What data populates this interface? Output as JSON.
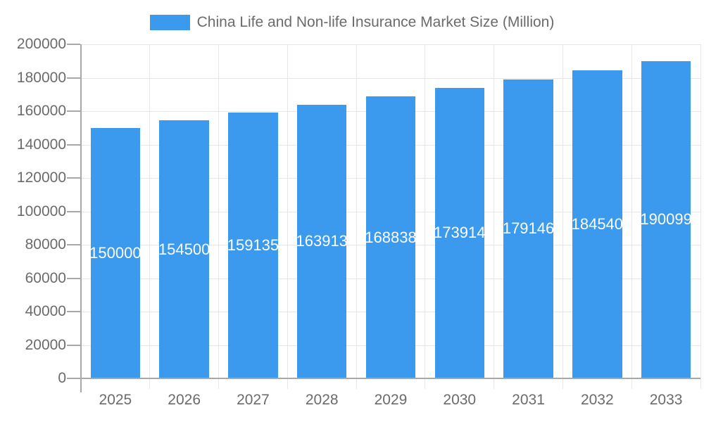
{
  "chart_data": {
    "type": "bar",
    "title": "China Life and Non-life Insurance Market Size (Million)",
    "legend": {
      "position": "top",
      "label": "China Life and Non-life Insurance Market Size (Million)"
    },
    "categories": [
      "2025",
      "2026",
      "2027",
      "2028",
      "2029",
      "2030",
      "2031",
      "2032",
      "2033"
    ],
    "series": [
      {
        "name": "China Life and Non-life Insurance Market Size (Million)",
        "values": [
          150000,
          154500,
          159135,
          163913,
          168838,
          173914,
          179146,
          184540,
          190099
        ]
      }
    ],
    "value_labels": [
      "150000",
      "154500",
      "159135",
      "163913",
      "168838",
      "173914",
      "179146",
      "184540",
      "190099"
    ],
    "value_labels_position": "inside-center",
    "xlabel": "",
    "ylabel": "",
    "ylim": [
      0,
      200000
    ],
    "ytick_step": 20000,
    "yticks": [
      "0",
      "20000",
      "40000",
      "60000",
      "80000",
      "100000",
      "120000",
      "140000",
      "160000",
      "180000",
      "200000"
    ],
    "grid": true
  },
  "colors": {
    "bar": "#3b99ee",
    "grid": "#e6e6e6",
    "axis": "#a8a8a8",
    "tick_text": "#6b6b6b",
    "value_text": "#ffffff",
    "background": "#ffffff"
  }
}
